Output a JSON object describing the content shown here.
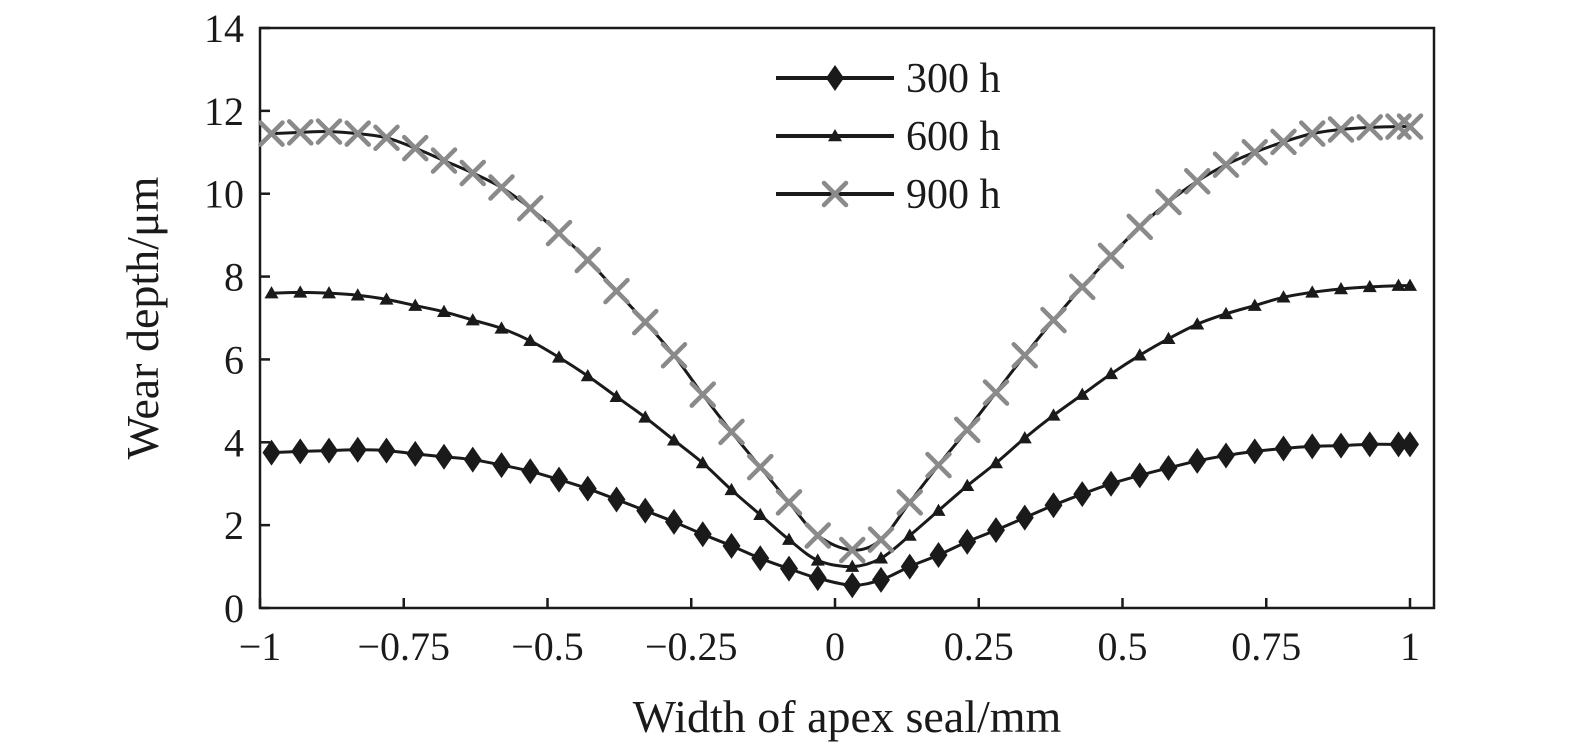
{
  "chart_data": {
    "type": "line",
    "xlabel": "Width of apex seal/mm",
    "ylabel": "Wear depth/μm",
    "xlim": [
      -1,
      1.04
    ],
    "ylim": [
      0,
      14
    ],
    "x_ticks": [
      -1,
      -0.75,
      -0.5,
      -0.25,
      0,
      0.25,
      0.5,
      0.75,
      1
    ],
    "x_tick_labels": [
      "−1",
      "−0.75",
      "−0.5",
      "−0.25",
      "0",
      "0.25",
      "0.5",
      "0.75",
      "1"
    ],
    "y_ticks": [
      0,
      2,
      4,
      6,
      8,
      10,
      12,
      14
    ],
    "y_tick_labels": [
      "0",
      "2",
      "4",
      "6",
      "8",
      "10",
      "12",
      "14"
    ],
    "grid": false,
    "legend_position": "top-center",
    "x": [
      -0.98,
      -0.93,
      -0.88,
      -0.83,
      -0.78,
      -0.73,
      -0.68,
      -0.63,
      -0.58,
      -0.53,
      -0.48,
      -0.43,
      -0.38,
      -0.33,
      -0.28,
      -0.23,
      -0.18,
      -0.13,
      -0.08,
      -0.03,
      0.03,
      0.08,
      0.13,
      0.18,
      0.23,
      0.28,
      0.33,
      0.38,
      0.43,
      0.48,
      0.53,
      0.58,
      0.63,
      0.68,
      0.73,
      0.78,
      0.83,
      0.88,
      0.93,
      0.98,
      1.0
    ],
    "series": [
      {
        "name": "300 h",
        "marker": "diamond",
        "color": "#1a1a1a",
        "values": [
          3.75,
          3.78,
          3.8,
          3.82,
          3.8,
          3.72,
          3.65,
          3.58,
          3.45,
          3.3,
          3.1,
          2.88,
          2.62,
          2.35,
          2.08,
          1.78,
          1.5,
          1.2,
          0.95,
          0.72,
          0.55,
          0.68,
          1.0,
          1.28,
          1.6,
          1.88,
          2.18,
          2.48,
          2.75,
          3.0,
          3.2,
          3.38,
          3.55,
          3.68,
          3.78,
          3.85,
          3.9,
          3.92,
          3.95,
          3.95,
          3.95
        ]
      },
      {
        "name": "600 h",
        "marker": "triangle",
        "color": "#1a1a1a",
        "values": [
          7.6,
          7.62,
          7.6,
          7.55,
          7.45,
          7.3,
          7.15,
          6.95,
          6.75,
          6.45,
          6.05,
          5.6,
          5.1,
          4.6,
          4.05,
          3.5,
          2.85,
          2.25,
          1.65,
          1.15,
          1.0,
          1.2,
          1.75,
          2.35,
          2.95,
          3.5,
          4.1,
          4.65,
          5.15,
          5.65,
          6.1,
          6.5,
          6.85,
          7.1,
          7.3,
          7.5,
          7.62,
          7.7,
          7.75,
          7.78,
          7.78
        ]
      },
      {
        "name": "900 h",
        "marker": "x",
        "color": "#8a8a8a",
        "values": [
          11.45,
          11.48,
          11.5,
          11.45,
          11.35,
          11.1,
          10.8,
          10.5,
          10.15,
          9.65,
          9.05,
          8.4,
          7.65,
          6.9,
          6.1,
          5.15,
          4.25,
          3.4,
          2.55,
          1.75,
          1.4,
          1.65,
          2.55,
          3.45,
          4.3,
          5.2,
          6.1,
          6.95,
          7.75,
          8.5,
          9.2,
          9.8,
          10.3,
          10.7,
          11.0,
          11.25,
          11.45,
          11.55,
          11.6,
          11.62,
          11.62
        ]
      }
    ]
  }
}
